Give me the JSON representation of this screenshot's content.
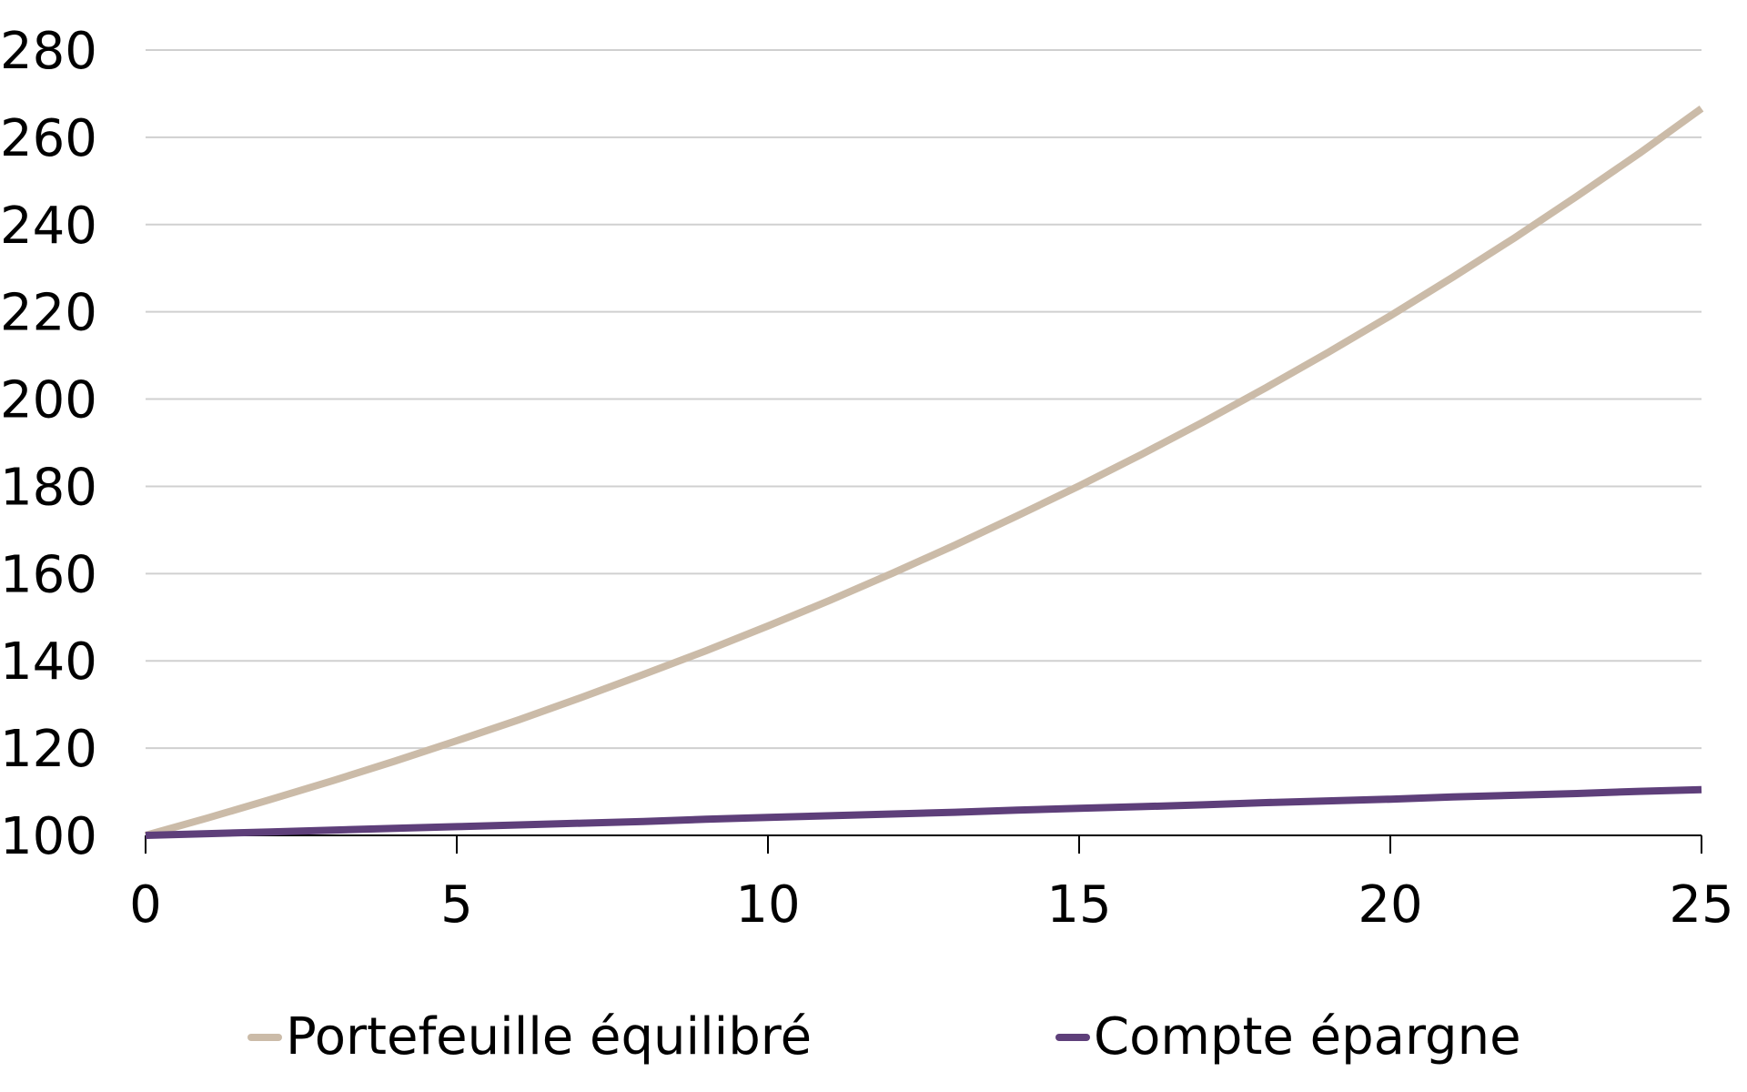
{
  "chart_data": {
    "type": "line",
    "title": "",
    "xlabel": "",
    "ylabel": "",
    "xlim": [
      0,
      25
    ],
    "ylim": [
      100,
      280
    ],
    "x_ticks": [
      0,
      5,
      10,
      15,
      20,
      25
    ],
    "y_ticks": [
      100,
      120,
      140,
      160,
      180,
      200,
      220,
      240,
      260,
      280
    ],
    "grid": "horizontal",
    "legend_position": "bottom",
    "x": [
      0,
      1,
      2,
      3,
      4,
      5,
      6,
      7,
      8,
      9,
      10,
      11,
      12,
      13,
      14,
      15,
      16,
      17,
      18,
      19,
      20,
      21,
      22,
      23,
      24,
      25
    ],
    "series": [
      {
        "name": "Portefeuille équilibré",
        "color": "#cbbba8",
        "values": [
          100.0,
          104.0,
          108.2,
          112.5,
          117.0,
          121.7,
          126.5,
          131.6,
          136.9,
          142.3,
          148.0,
          153.9,
          160.1,
          166.5,
          173.2,
          180.1,
          187.3,
          194.8,
          202.6,
          210.7,
          219.1,
          227.9,
          237.0,
          246.5,
          256.3,
          266.6
        ]
      },
      {
        "name": "Compte épargne",
        "color": "#5e3f7a",
        "values": [
          100.0,
          100.4,
          100.8,
          101.2,
          101.6,
          102.0,
          102.4,
          102.8,
          103.2,
          103.7,
          104.1,
          104.5,
          104.9,
          105.3,
          105.8,
          106.2,
          106.6,
          107.0,
          107.5,
          107.9,
          108.3,
          108.8,
          109.2,
          109.6,
          110.1,
          110.5
        ]
      }
    ]
  },
  "legend": {
    "items": [
      {
        "label": "Portefeuille équilibré",
        "color": "#cbbba8"
      },
      {
        "label": "Compte épargne",
        "color": "#5e3f7a"
      }
    ]
  },
  "style": {
    "grid_color": "#d0d0d0",
    "axis_color": "#000000"
  }
}
